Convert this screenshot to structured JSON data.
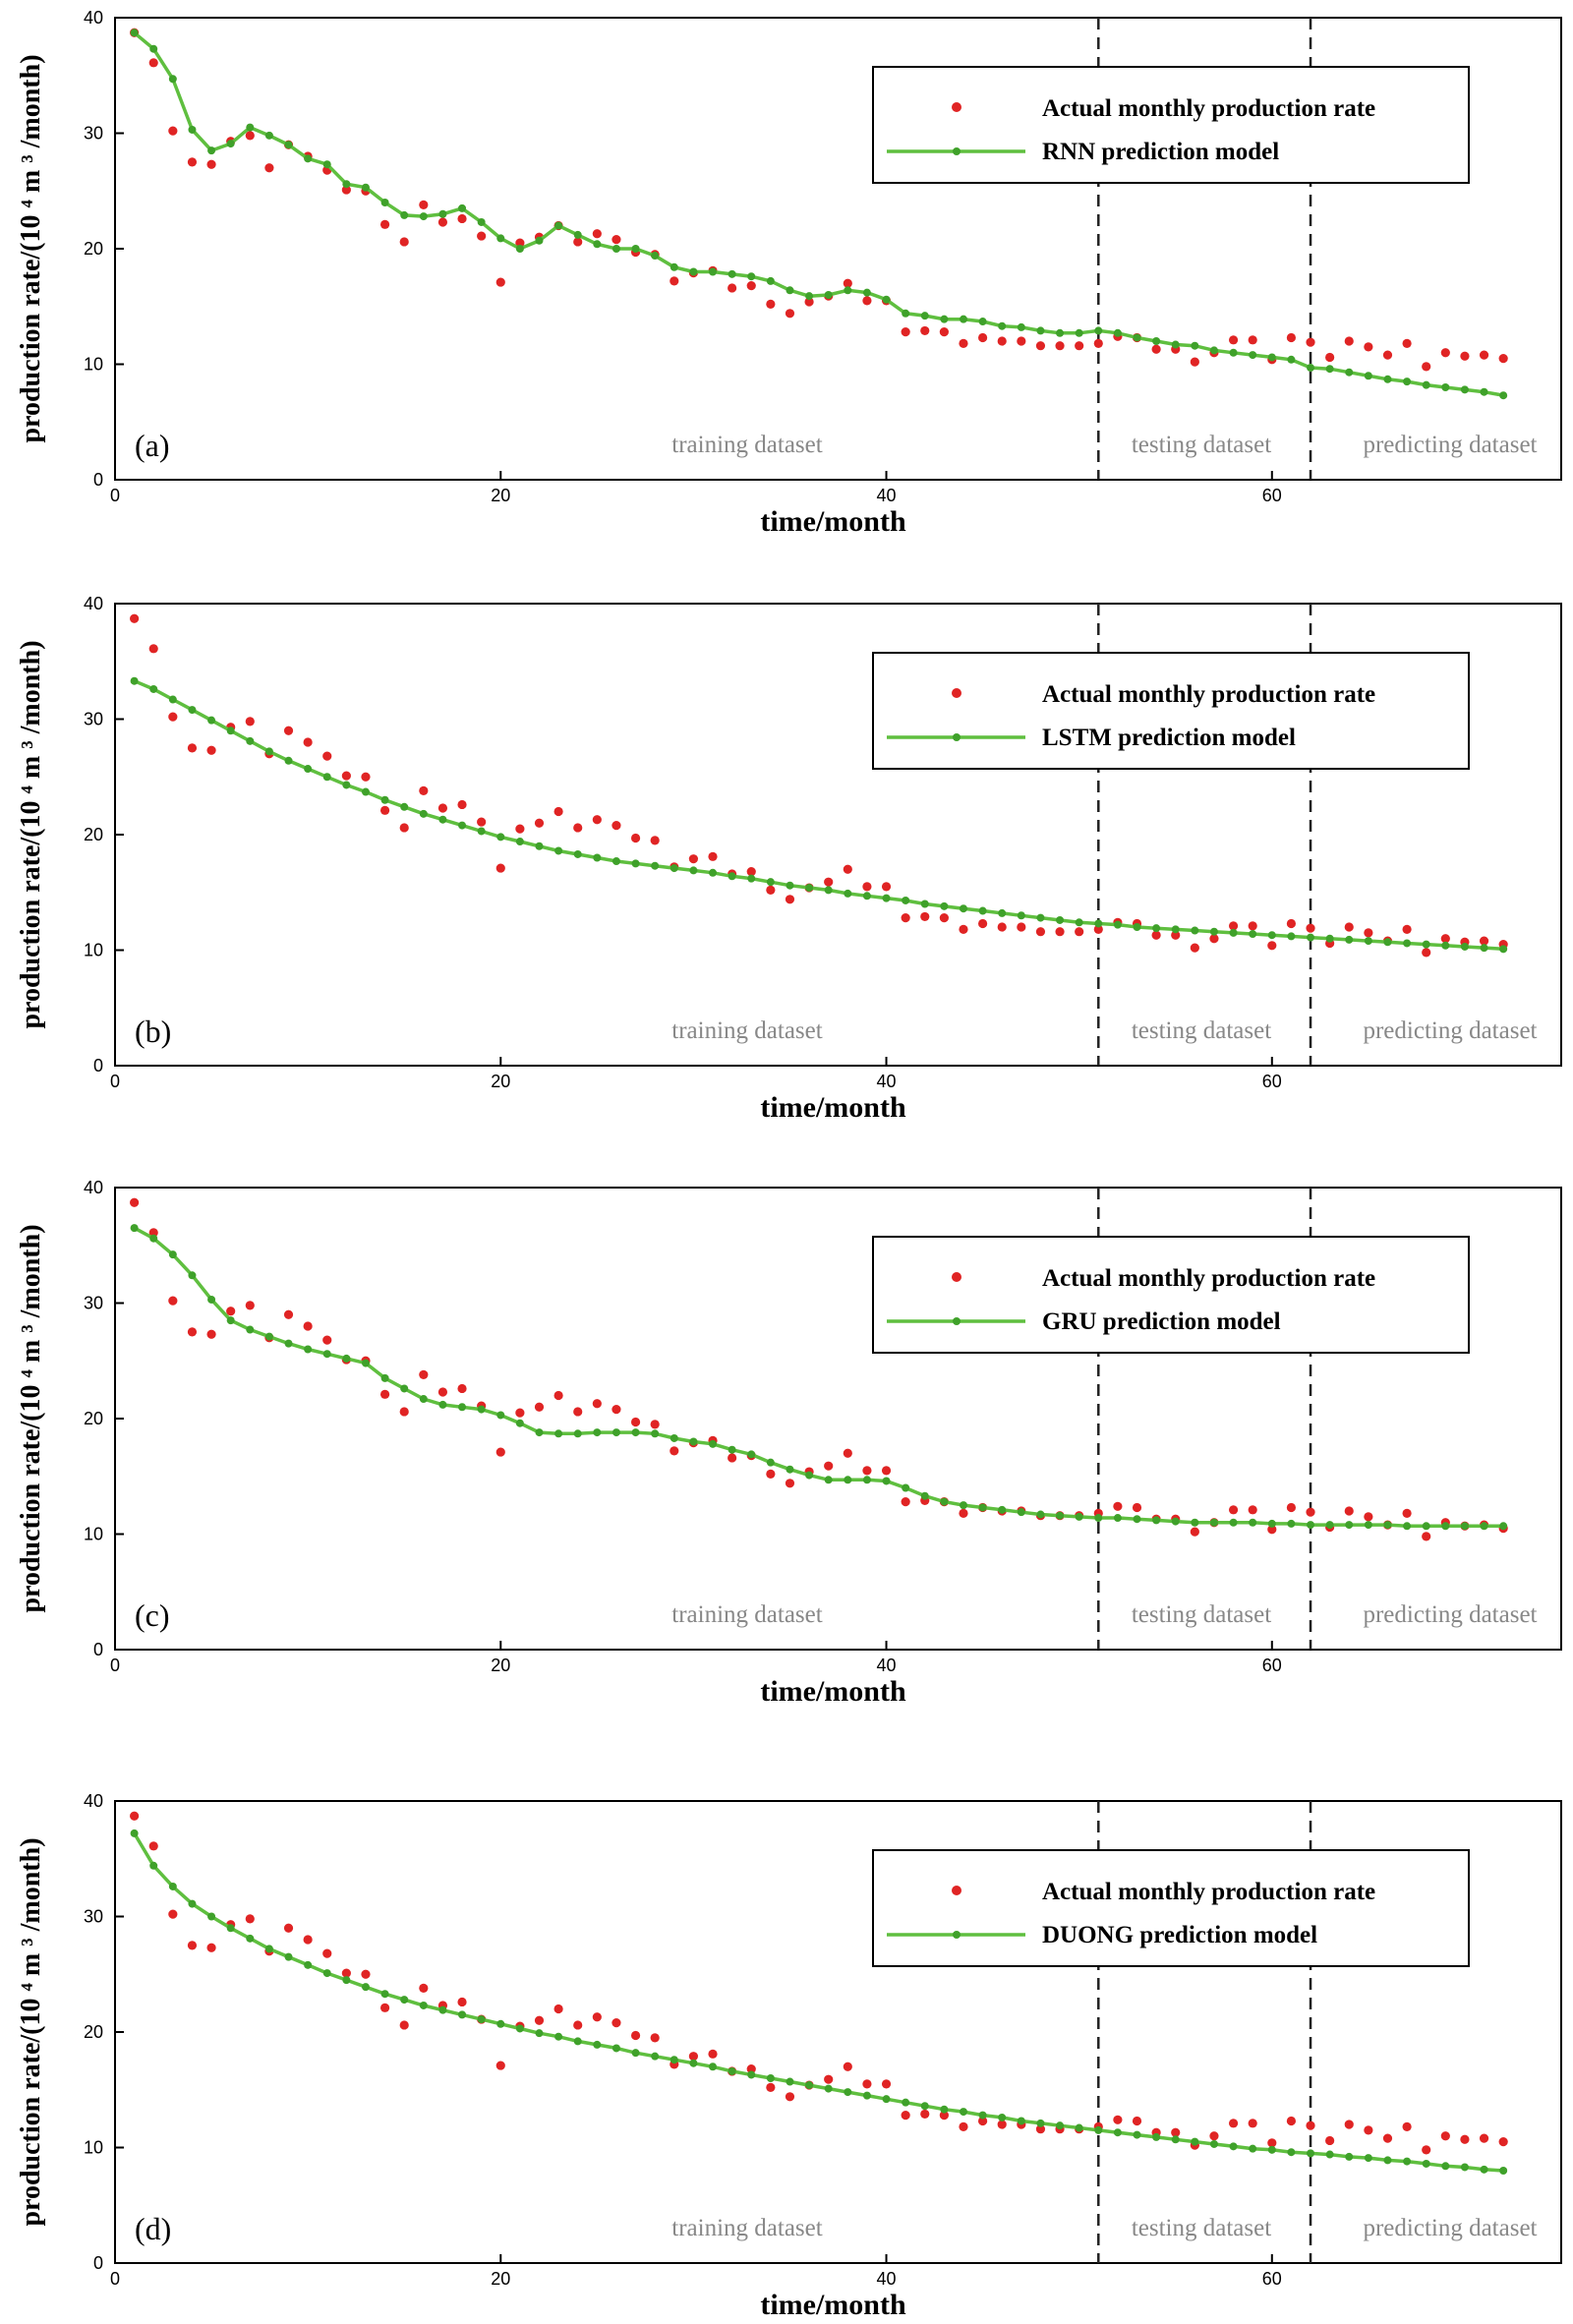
{
  "colors": {
    "actual": "#e02424",
    "model": "#5fbf3f",
    "model_marker": "#3fa12a"
  },
  "chart_data": [
    {
      "type": "line",
      "panel_label": "(a)",
      "xlabel": "time/month",
      "ylabel": "production rate/(10 ⁴ m ³ /month)",
      "xlim": [
        0,
        75
      ],
      "ylim": [
        0,
        40
      ],
      "xticks": [
        0,
        20,
        40,
        60
      ],
      "yticks": [
        0,
        10,
        20,
        30,
        40
      ],
      "split_lines": [
        51,
        62
      ],
      "region_labels": [
        "training dataset",
        "testing dataset",
        "predicting dataset"
      ],
      "series": [
        {
          "name": "Actual monthly production rate",
          "style": "markers",
          "values": [
            38.7,
            36.1,
            30.2,
            27.5,
            27.3,
            29.3,
            29.8,
            27.0,
            29.0,
            28.0,
            26.8,
            25.1,
            25.0,
            22.1,
            20.6,
            23.8,
            22.3,
            22.6,
            21.1,
            17.1,
            20.5,
            21.0,
            22.0,
            20.6,
            21.3,
            20.8,
            19.7,
            19.5,
            17.2,
            17.9,
            18.1,
            16.6,
            16.8,
            15.2,
            14.4,
            15.4,
            15.9,
            17.0,
            15.5,
            15.5,
            12.8,
            12.9,
            12.8,
            11.8,
            12.3,
            12.0,
            12.0,
            11.6,
            11.6,
            11.6,
            11.8,
            12.4,
            12.3,
            11.3,
            11.3,
            10.2,
            11.0,
            12.1,
            12.1,
            10.4,
            12.3,
            11.9,
            10.6,
            12.0,
            11.5,
            10.8,
            11.8,
            9.8,
            11.0,
            10.7,
            10.8,
            10.5
          ]
        },
        {
          "name": "RNN prediction model",
          "style": "line",
          "values": [
            38.7,
            37.3,
            34.7,
            30.3,
            28.5,
            29.1,
            30.5,
            29.8,
            29.0,
            27.8,
            27.3,
            25.6,
            25.3,
            24.0,
            22.9,
            22.8,
            23.0,
            23.5,
            22.3,
            20.9,
            20.0,
            20.7,
            22.0,
            21.2,
            20.4,
            20.0,
            20.0,
            19.4,
            18.4,
            18.0,
            18.0,
            17.8,
            17.6,
            17.2,
            16.4,
            15.9,
            16.0,
            16.4,
            16.2,
            15.6,
            14.4,
            14.2,
            13.9,
            13.9,
            13.7,
            13.3,
            13.2,
            12.9,
            12.7,
            12.7,
            12.9,
            12.7,
            12.3,
            12.0,
            11.7,
            11.6,
            11.2,
            11.0,
            10.8,
            10.6,
            10.4,
            9.7,
            9.6,
            9.3,
            9.0,
            8.7,
            8.5,
            8.2,
            8.0,
            7.8,
            7.6,
            7.3
          ]
        }
      ]
    },
    {
      "type": "line",
      "panel_label": "(b)",
      "xlabel": "time/month",
      "ylabel": "production rate/(10 ⁴ m ³ /month)",
      "xlim": [
        0,
        75
      ],
      "ylim": [
        0,
        40
      ],
      "xticks": [
        0,
        20,
        40,
        60
      ],
      "yticks": [
        0,
        10,
        20,
        30,
        40
      ],
      "split_lines": [
        51,
        62
      ],
      "region_labels": [
        "training dataset",
        "testing dataset",
        "predicting dataset"
      ],
      "series": [
        {
          "name": "Actual monthly production rate",
          "style": "markers",
          "values": [
            38.7,
            36.1,
            30.2,
            27.5,
            27.3,
            29.3,
            29.8,
            27.0,
            29.0,
            28.0,
            26.8,
            25.1,
            25.0,
            22.1,
            20.6,
            23.8,
            22.3,
            22.6,
            21.1,
            17.1,
            20.5,
            21.0,
            22.0,
            20.6,
            21.3,
            20.8,
            19.7,
            19.5,
            17.2,
            17.9,
            18.1,
            16.6,
            16.8,
            15.2,
            14.4,
            15.4,
            15.9,
            17.0,
            15.5,
            15.5,
            12.8,
            12.9,
            12.8,
            11.8,
            12.3,
            12.0,
            12.0,
            11.6,
            11.6,
            11.6,
            11.8,
            12.4,
            12.3,
            11.3,
            11.3,
            10.2,
            11.0,
            12.1,
            12.1,
            10.4,
            12.3,
            11.9,
            10.6,
            12.0,
            11.5,
            10.8,
            11.8,
            9.8,
            11.0,
            10.7,
            10.8,
            10.5
          ]
        },
        {
          "name": "LSTM prediction model",
          "style": "line",
          "values": [
            33.3,
            32.6,
            31.7,
            30.8,
            29.9,
            29.0,
            28.1,
            27.2,
            26.4,
            25.7,
            25.0,
            24.3,
            23.7,
            23.0,
            22.4,
            21.8,
            21.3,
            20.8,
            20.3,
            19.8,
            19.4,
            19.0,
            18.6,
            18.3,
            18.0,
            17.7,
            17.5,
            17.3,
            17.1,
            16.9,
            16.7,
            16.4,
            16.2,
            15.9,
            15.6,
            15.4,
            15.2,
            14.9,
            14.7,
            14.5,
            14.3,
            14.0,
            13.8,
            13.6,
            13.4,
            13.2,
            13.0,
            12.8,
            12.6,
            12.4,
            12.3,
            12.2,
            12.0,
            11.9,
            11.8,
            11.7,
            11.6,
            11.5,
            11.4,
            11.3,
            11.2,
            11.1,
            11.0,
            10.9,
            10.8,
            10.7,
            10.6,
            10.5,
            10.4,
            10.3,
            10.2,
            10.1
          ]
        }
      ]
    },
    {
      "type": "line",
      "panel_label": "(c)",
      "xlabel": "time/month",
      "ylabel": "production rate/(10 ⁴ m ³ /month)",
      "xlim": [
        0,
        75
      ],
      "ylim": [
        0,
        40
      ],
      "xticks": [
        0,
        20,
        40,
        60
      ],
      "yticks": [
        0,
        10,
        20,
        30,
        40
      ],
      "split_lines": [
        51,
        62
      ],
      "region_labels": [
        "training dataset",
        "testing dataset",
        "predicting dataset"
      ],
      "series": [
        {
          "name": "Actual monthly production rate",
          "style": "markers",
          "values": [
            38.7,
            36.1,
            30.2,
            27.5,
            27.3,
            29.3,
            29.8,
            27.0,
            29.0,
            28.0,
            26.8,
            25.1,
            25.0,
            22.1,
            20.6,
            23.8,
            22.3,
            22.6,
            21.1,
            17.1,
            20.5,
            21.0,
            22.0,
            20.6,
            21.3,
            20.8,
            19.7,
            19.5,
            17.2,
            17.9,
            18.1,
            16.6,
            16.8,
            15.2,
            14.4,
            15.4,
            15.9,
            17.0,
            15.5,
            15.5,
            12.8,
            12.9,
            12.8,
            11.8,
            12.3,
            12.0,
            12.0,
            11.6,
            11.6,
            11.6,
            11.8,
            12.4,
            12.3,
            11.3,
            11.3,
            10.2,
            11.0,
            12.1,
            12.1,
            10.4,
            12.3,
            11.9,
            10.6,
            12.0,
            11.5,
            10.8,
            11.8,
            9.8,
            11.0,
            10.7,
            10.8,
            10.5
          ]
        },
        {
          "name": "GRU prediction model",
          "style": "line",
          "values": [
            36.5,
            35.6,
            34.2,
            32.4,
            30.3,
            28.5,
            27.7,
            27.1,
            26.5,
            26.0,
            25.6,
            25.2,
            24.8,
            23.5,
            22.6,
            21.7,
            21.2,
            21.0,
            20.8,
            20.3,
            19.6,
            18.8,
            18.7,
            18.7,
            18.8,
            18.8,
            18.8,
            18.7,
            18.3,
            18.0,
            17.8,
            17.3,
            16.9,
            16.2,
            15.6,
            15.1,
            14.7,
            14.7,
            14.7,
            14.6,
            14.0,
            13.3,
            12.8,
            12.5,
            12.3,
            12.1,
            11.9,
            11.7,
            11.6,
            11.5,
            11.4,
            11.4,
            11.3,
            11.2,
            11.1,
            11.0,
            11.0,
            11.0,
            11.0,
            10.9,
            10.9,
            10.8,
            10.8,
            10.8,
            10.8,
            10.8,
            10.7,
            10.7,
            10.7,
            10.7,
            10.7,
            10.7
          ]
        }
      ]
    },
    {
      "type": "line",
      "panel_label": "(d)",
      "xlabel": "time/month",
      "ylabel": "production rate/(10 ⁴ m ³ /month)",
      "xlim": [
        0,
        75
      ],
      "ylim": [
        0,
        40
      ],
      "xticks": [
        0,
        20,
        40,
        60
      ],
      "yticks": [
        0,
        10,
        20,
        30,
        40
      ],
      "split_lines": [
        51,
        62
      ],
      "region_labels": [
        "training dataset",
        "testing dataset",
        "predicting dataset"
      ],
      "series": [
        {
          "name": "Actual monthly production rate",
          "style": "markers",
          "values": [
            38.7,
            36.1,
            30.2,
            27.5,
            27.3,
            29.3,
            29.8,
            27.0,
            29.0,
            28.0,
            26.8,
            25.1,
            25.0,
            22.1,
            20.6,
            23.8,
            22.3,
            22.6,
            21.1,
            17.1,
            20.5,
            21.0,
            22.0,
            20.6,
            21.3,
            20.8,
            19.7,
            19.5,
            17.2,
            17.9,
            18.1,
            16.6,
            16.8,
            15.2,
            14.4,
            15.4,
            15.9,
            17.0,
            15.5,
            15.5,
            12.8,
            12.9,
            12.8,
            11.8,
            12.3,
            12.0,
            12.0,
            11.6,
            11.6,
            11.6,
            11.8,
            12.4,
            12.3,
            11.3,
            11.3,
            10.2,
            11.0,
            12.1,
            12.1,
            10.4,
            12.3,
            11.9,
            10.6,
            12.0,
            11.5,
            10.8,
            11.8,
            9.8,
            11.0,
            10.7,
            10.8,
            10.5
          ]
        },
        {
          "name": "DUONG prediction model",
          "style": "line",
          "values": [
            37.2,
            34.4,
            32.6,
            31.1,
            30.0,
            29.0,
            28.1,
            27.2,
            26.5,
            25.8,
            25.1,
            24.5,
            23.9,
            23.3,
            22.8,
            22.3,
            21.9,
            21.5,
            21.1,
            20.7,
            20.3,
            19.9,
            19.6,
            19.2,
            18.9,
            18.6,
            18.2,
            17.9,
            17.6,
            17.3,
            17.0,
            16.6,
            16.3,
            16.0,
            15.7,
            15.4,
            15.1,
            14.8,
            14.5,
            14.2,
            13.9,
            13.6,
            13.3,
            13.1,
            12.8,
            12.6,
            12.3,
            12.1,
            11.9,
            11.7,
            11.5,
            11.3,
            11.1,
            10.9,
            10.7,
            10.5,
            10.3,
            10.1,
            9.9,
            9.8,
            9.6,
            9.5,
            9.4,
            9.2,
            9.1,
            8.9,
            8.8,
            8.6,
            8.4,
            8.3,
            8.1,
            8.0
          ]
        }
      ]
    }
  ]
}
